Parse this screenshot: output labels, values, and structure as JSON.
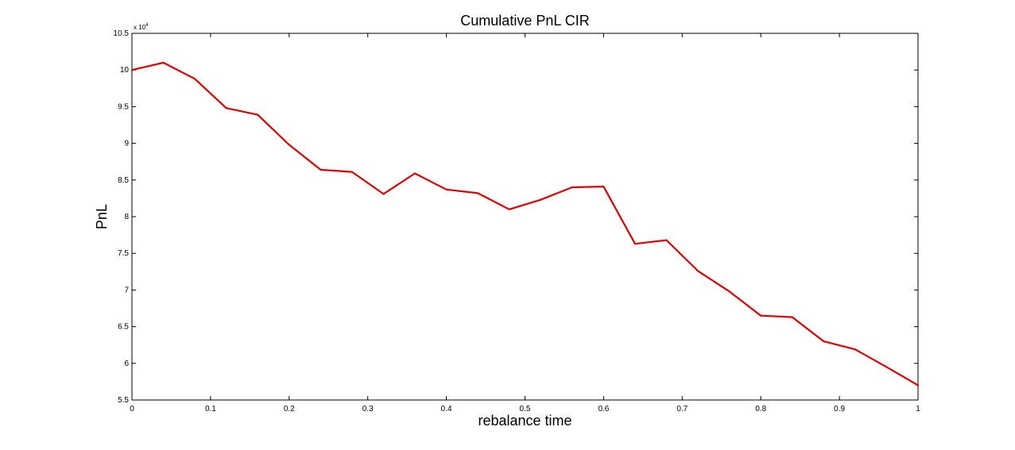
{
  "chart_data": {
    "type": "line",
    "title": "Cumulative PnL CIR",
    "xlabel": "rebalance time",
    "ylabel": "PnL",
    "y_scale_note": "x 10^4",
    "xlim": [
      0,
      1
    ],
    "ylim": [
      5.5,
      10.5
    ],
    "x_ticks": [
      0,
      0.1,
      0.2,
      0.3,
      0.4,
      0.5,
      0.6,
      0.7,
      0.8,
      0.9,
      1
    ],
    "x_tick_labels": [
      "0",
      "0.1",
      "0.2",
      "0.3",
      "0.4",
      "0.5",
      "0.6",
      "0.7",
      "0.8",
      "0.9",
      "1"
    ],
    "y_ticks": [
      5.5,
      6,
      6.5,
      7,
      7.5,
      8,
      8.5,
      9,
      9.5,
      10,
      10.5
    ],
    "y_tick_labels": [
      "5.5",
      "6",
      "6.5",
      "7",
      "7.5",
      "8",
      "8.5",
      "9",
      "9.5",
      "10",
      "10.5"
    ],
    "grid": false,
    "series": [
      {
        "color": "#e00000",
        "x": [
          0,
          0.04,
          0.08,
          0.12,
          0.16,
          0.2,
          0.24,
          0.28,
          0.32,
          0.36,
          0.4,
          0.44,
          0.48,
          0.52,
          0.56,
          0.6,
          0.64,
          0.68,
          0.72,
          0.76,
          0.8,
          0.84,
          0.88,
          0.92,
          0.96,
          1.0
        ],
        "y": [
          10.0,
          10.1,
          9.88,
          9.48,
          9.39,
          8.98,
          8.64,
          8.61,
          8.31,
          8.59,
          8.37,
          8.32,
          8.1,
          8.23,
          8.4,
          8.41,
          7.63,
          7.68,
          7.26,
          6.98,
          6.65,
          6.63,
          6.3,
          6.19,
          5.95,
          5.7
        ]
      }
    ]
  }
}
